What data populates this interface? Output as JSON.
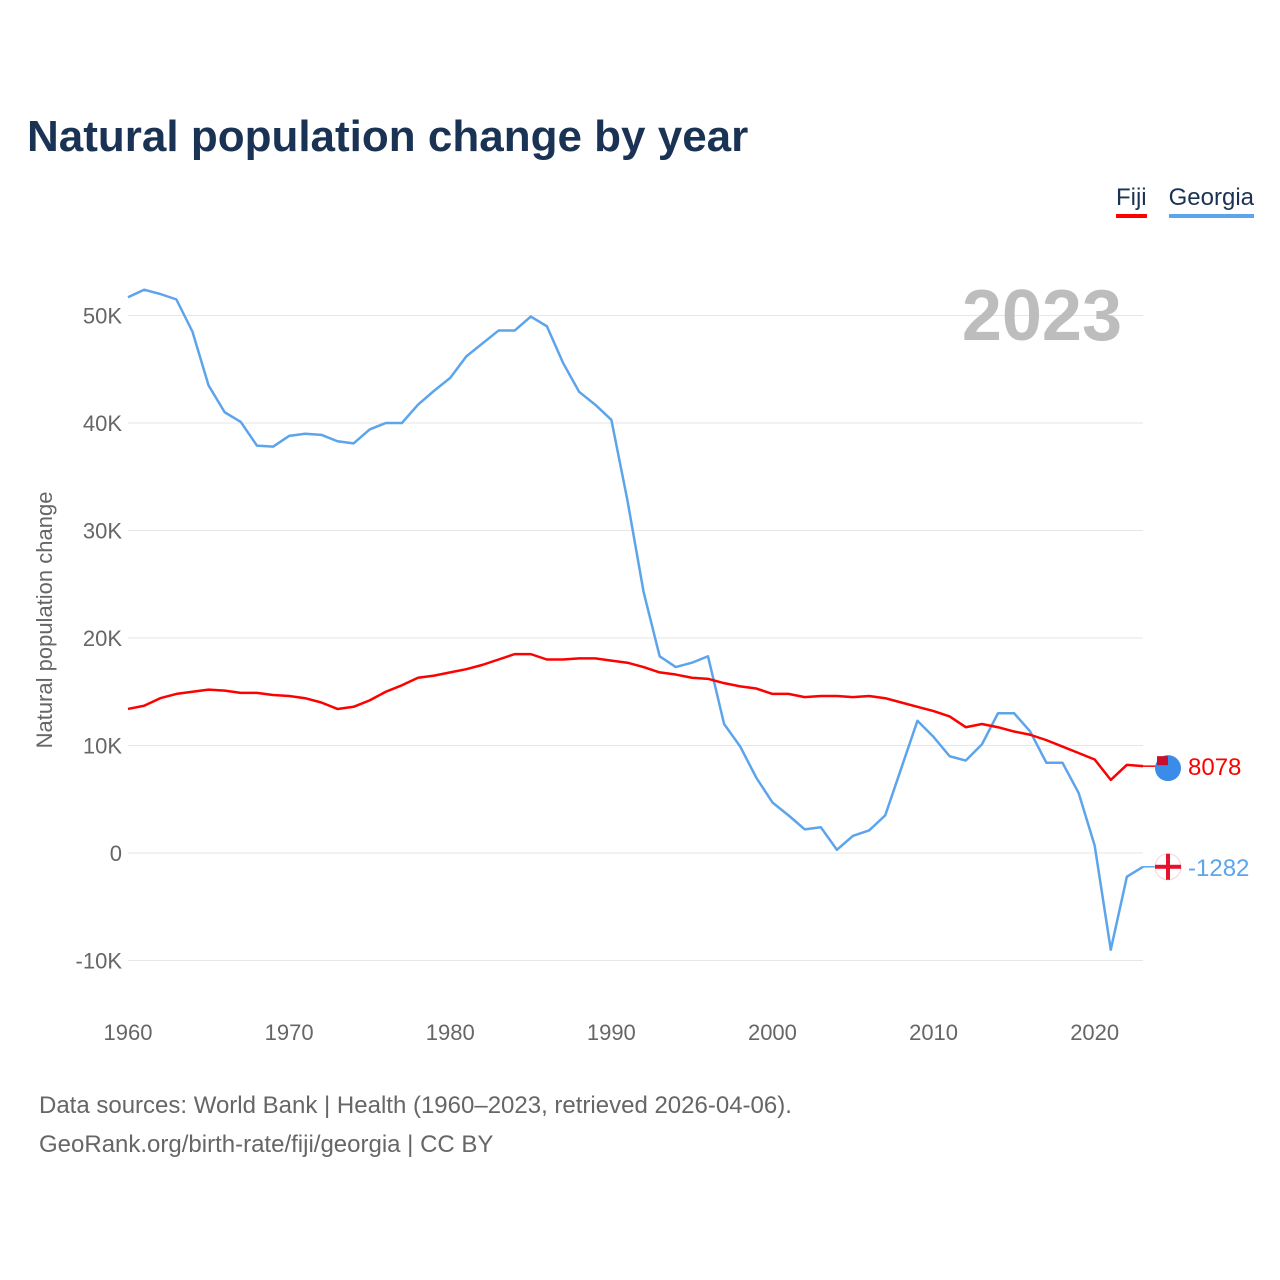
{
  "chart_data": {
    "type": "line",
    "title": "Natural population change by year",
    "ylabel": "Natural population change",
    "xlabel": "",
    "year_label": "2023",
    "xlim": [
      1960,
      2023
    ],
    "ylim": [
      -14000,
      56000
    ],
    "x_ticks": [
      1960,
      1970,
      1980,
      1990,
      2000,
      2010,
      2020
    ],
    "y_ticks": [
      -10000,
      0,
      10000,
      20000,
      30000,
      40000,
      50000
    ],
    "y_tick_labels": [
      "-10K",
      "0",
      "10K",
      "20K",
      "30K",
      "40K",
      "50K"
    ],
    "grid": true,
    "legend_position": "top-right",
    "x": [
      1960,
      1961,
      1962,
      1963,
      1964,
      1965,
      1966,
      1967,
      1968,
      1969,
      1970,
      1971,
      1972,
      1973,
      1974,
      1975,
      1976,
      1977,
      1978,
      1979,
      1980,
      1981,
      1982,
      1983,
      1984,
      1985,
      1986,
      1987,
      1988,
      1989,
      1990,
      1991,
      1992,
      1993,
      1994,
      1995,
      1996,
      1997,
      1998,
      1999,
      2000,
      2001,
      2002,
      2003,
      2004,
      2005,
      2006,
      2007,
      2008,
      2009,
      2010,
      2011,
      2012,
      2013,
      2014,
      2015,
      2016,
      2017,
      2018,
      2019,
      2020,
      2021,
      2022,
      2023
    ],
    "series": [
      {
        "name": "Fiji",
        "color": "#ff0000",
        "end_label": "8078",
        "values": [
          13400,
          13700,
          14400,
          14800,
          15000,
          15200,
          15100,
          14900,
          14900,
          14700,
          14600,
          14400,
          14000,
          13400,
          13600,
          14200,
          15000,
          15600,
          16300,
          16500,
          16800,
          17100,
          17500,
          18000,
          18500,
          18500,
          18000,
          18000,
          18100,
          18100,
          17900,
          17700,
          17300,
          16800,
          16600,
          16300,
          16200,
          15800,
          15500,
          15300,
          14800,
          14800,
          14500,
          14600,
          14600,
          14500,
          14600,
          14400,
          14000,
          13600,
          13200,
          12700,
          11700,
          12000,
          11700,
          11300,
          11000,
          10500,
          9900,
          9300,
          8700,
          6800,
          8200,
          8078
        ]
      },
      {
        "name": "Georgia",
        "color": "#5ca4ec",
        "end_label": "-1282",
        "values": [
          51700,
          52400,
          52000,
          51500,
          48500,
          43500,
          41000,
          40100,
          37900,
          37800,
          38800,
          39000,
          38900,
          38300,
          38100,
          39400,
          40000,
          40000,
          41700,
          43000,
          44200,
          46200,
          47400,
          48600,
          48600,
          49900,
          49000,
          45600,
          42900,
          41700,
          40300,
          32800,
          24300,
          18300,
          17300,
          17700,
          18300,
          12000,
          9900,
          7000,
          4700,
          3500,
          2200,
          2400,
          300,
          1600,
          2100,
          3500,
          7900,
          12300,
          10800,
          9000,
          8600,
          10100,
          13000,
          13000,
          11300,
          8400,
          8400,
          5600,
          700,
          -9000,
          -2200,
          -1282
        ]
      }
    ]
  },
  "footer": {
    "line1": "Data sources: World Bank | Health (1960–2023, retrieved 2026-04-06).",
    "line2": "GeoRank.org/birth-rate/fiji/georgia | CC BY"
  }
}
